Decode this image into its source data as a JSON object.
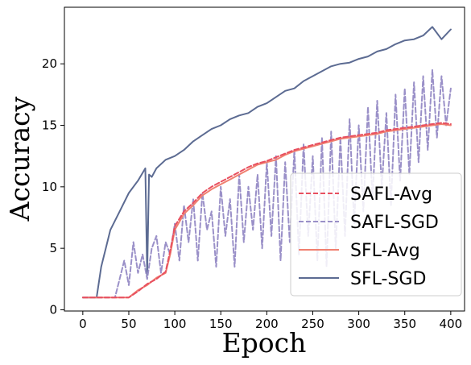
{
  "chart_data": {
    "type": "line",
    "xlabel": "Epoch",
    "ylabel": "Accuracy",
    "xlim": [
      -20,
      415
    ],
    "ylim": [
      -0.1,
      24.6
    ],
    "xticks": [
      0,
      50,
      100,
      150,
      200,
      250,
      300,
      350,
      400
    ],
    "yticks": [
      0,
      5,
      10,
      15,
      20
    ],
    "grid": false,
    "legend_position": "lower-right",
    "legend_order": [
      "SAFL-Avg",
      "SAFL-SGD",
      "SFL-Avg",
      "SFL-SGD"
    ],
    "series": [
      {
        "name": "SFL-SGD",
        "color": "#5c6b92",
        "style": "solid",
        "x": [
          0,
          15,
          20,
          25,
          30,
          40,
          50,
          60,
          68,
          70,
          72,
          75,
          80,
          90,
          100,
          110,
          120,
          130,
          140,
          150,
          160,
          170,
          180,
          190,
          200,
          210,
          220,
          230,
          240,
          250,
          260,
          270,
          280,
          290,
          300,
          310,
          320,
          330,
          340,
          350,
          360,
          370,
          380,
          390,
          400
        ],
        "values": [
          1.0,
          1.0,
          3.5,
          5.0,
          6.5,
          8.0,
          9.5,
          10.5,
          11.5,
          2.8,
          11.0,
          10.8,
          11.5,
          12.2,
          12.5,
          13.0,
          13.7,
          14.2,
          14.7,
          15.0,
          15.5,
          15.8,
          16.0,
          16.5,
          16.8,
          17.3,
          17.8,
          18.0,
          18.6,
          19.0,
          19.4,
          19.8,
          20.0,
          20.1,
          20.4,
          20.6,
          21.0,
          21.2,
          21.6,
          21.9,
          22.0,
          22.3,
          23.0,
          22.0,
          22.8
        ]
      },
      {
        "name": "SAFL-SGD",
        "color": "#9a90c8",
        "style": "dashed",
        "x": [
          0,
          35,
          40,
          45,
          50,
          55,
          60,
          65,
          70,
          75,
          80,
          85,
          90,
          95,
          100,
          105,
          110,
          115,
          120,
          125,
          130,
          135,
          140,
          145,
          150,
          155,
          160,
          165,
          170,
          175,
          180,
          185,
          190,
          195,
          200,
          205,
          210,
          215,
          220,
          225,
          230,
          235,
          240,
          245,
          250,
          255,
          260,
          265,
          270,
          275,
          280,
          285,
          290,
          295,
          300,
          305,
          310,
          315,
          320,
          325,
          330,
          335,
          340,
          345,
          350,
          355,
          360,
          365,
          370,
          375,
          380,
          385,
          390,
          395,
          400
        ],
        "values": [
          1.0,
          1.0,
          2.5,
          4.0,
          2.0,
          5.5,
          3.0,
          4.5,
          2.5,
          5.0,
          6.0,
          3.0,
          5.5,
          4.5,
          7.0,
          4.0,
          8.5,
          5.5,
          9.0,
          4.0,
          9.5,
          6.5,
          8.0,
          3.5,
          10.0,
          6.0,
          9.0,
          3.5,
          11.0,
          5.5,
          10.0,
          6.5,
          11.0,
          5.0,
          12.0,
          6.0,
          12.5,
          4.0,
          12.0,
          5.5,
          13.0,
          4.5,
          13.5,
          6.0,
          12.5,
          4.0,
          14.0,
          3.5,
          14.5,
          5.0,
          14.0,
          6.0,
          15.5,
          7.0,
          15.0,
          8.0,
          16.5,
          9.0,
          17.0,
          10.0,
          16.0,
          8.5,
          17.5,
          10.5,
          18.0,
          11.0,
          18.5,
          12.0,
          19.0,
          13.0,
          19.5,
          14.0,
          19.0,
          15.0,
          18.0
        ]
      },
      {
        "name": "SFL-Avg",
        "color": "#f08070",
        "style": "solid",
        "x": [
          0,
          50,
          60,
          70,
          80,
          90,
          95,
          100,
          110,
          120,
          130,
          140,
          150,
          160,
          170,
          180,
          190,
          200,
          210,
          220,
          230,
          240,
          250,
          260,
          270,
          280,
          290,
          300,
          310,
          320,
          330,
          340,
          350,
          360,
          370,
          380,
          390,
          400
        ],
        "values": [
          1.0,
          1.0,
          1.6,
          2.0,
          2.6,
          3.0,
          4.5,
          6.5,
          7.8,
          8.5,
          9.3,
          9.8,
          10.2,
          10.6,
          11.0,
          11.4,
          11.8,
          12.0,
          12.2,
          12.6,
          12.9,
          13.1,
          13.3,
          13.5,
          13.7,
          13.9,
          14.0,
          14.1,
          14.2,
          14.3,
          14.5,
          14.6,
          14.7,
          14.8,
          14.9,
          15.0,
          15.1,
          15.0
        ]
      },
      {
        "name": "SAFL-Avg",
        "color": "#e85060",
        "style": "dashed",
        "x": [
          0,
          50,
          60,
          70,
          80,
          90,
          95,
          100,
          110,
          120,
          130,
          140,
          150,
          160,
          170,
          180,
          190,
          200,
          210,
          220,
          230,
          240,
          250,
          260,
          270,
          280,
          290,
          300,
          310,
          320,
          330,
          340,
          350,
          360,
          370,
          380,
          390,
          400
        ],
        "values": [
          1.0,
          1.0,
          1.5,
          2.1,
          2.5,
          3.1,
          4.8,
          6.8,
          8.0,
          8.7,
          9.5,
          10.0,
          10.4,
          10.8,
          11.2,
          11.6,
          11.9,
          12.1,
          12.4,
          12.7,
          13.0,
          13.2,
          13.4,
          13.6,
          13.8,
          14.0,
          14.1,
          14.2,
          14.3,
          14.4,
          14.6,
          14.7,
          14.8,
          14.9,
          15.0,
          15.1,
          15.2,
          15.1
        ]
      }
    ]
  }
}
